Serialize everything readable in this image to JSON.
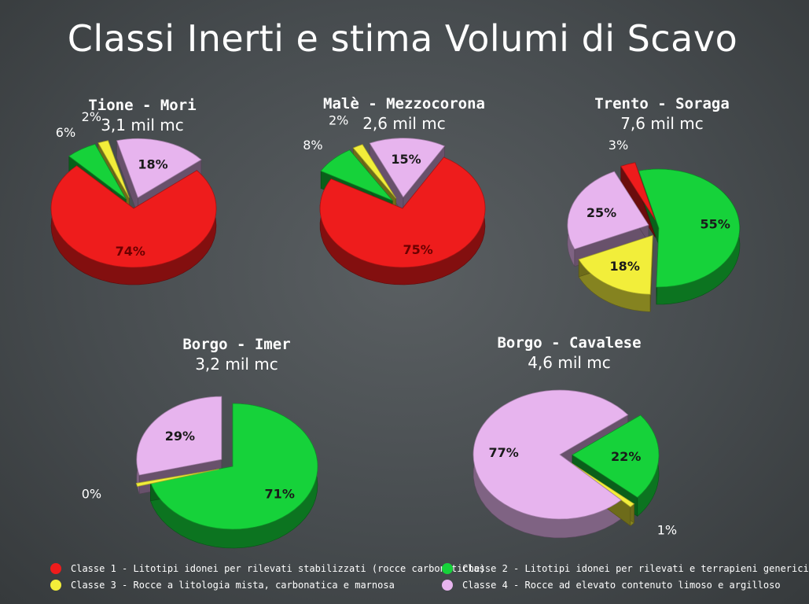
{
  "title": "Classi Inerti e stima Volumi di Scavo",
  "colors": {
    "class1": "#ee1c1c",
    "class2": "#16d23a",
    "class3": "#f2ee3a",
    "class4": "#e7b4ee"
  },
  "legend": [
    {
      "label": "Classe 1 - Litotipi idonei per rilevati stabilizzati (rocce carbonatiche)",
      "color": "#ee1c1c"
    },
    {
      "label": "Classe 2 - Litotipi idonei per rilevati e terrapieni generici",
      "color": "#16d23a"
    },
    {
      "label": "Classe 3 - Rocce a litologia mista, carbonatica e marnosa",
      "color": "#f2ee3a"
    },
    {
      "label": "Classe 4 - Rocce ad elevato contenuto limoso e argilloso",
      "color": "#e7b4ee"
    }
  ],
  "chart_data": [
    {
      "type": "pie",
      "title": "Tione - Mori",
      "subtitle": "3,1 mil mc",
      "categories": [
        "Classe 1",
        "Classe 2",
        "Classe 3",
        "Classe 4"
      ],
      "values": [
        74,
        6,
        2,
        18
      ],
      "labels": [
        "74%",
        "6%",
        "2%",
        "18%"
      ]
    },
    {
      "type": "pie",
      "title": "Malè - Mezzocorona",
      "subtitle": "2,6 mil mc",
      "categories": [
        "Classe 1",
        "Classe 2",
        "Classe 3",
        "Classe 4"
      ],
      "values": [
        75,
        8,
        2,
        15
      ],
      "labels": [
        "75%",
        "8%",
        "2%",
        "15%"
      ]
    },
    {
      "type": "pie",
      "title": "Trento - Soraga",
      "subtitle": "7,6 mil mc",
      "categories": [
        "Classe 1",
        "Classe 2",
        "Classe 3",
        "Classe 4"
      ],
      "values": [
        3,
        55,
        18,
        25
      ],
      "labels": [
        "3%",
        "55%",
        "18%",
        "25%"
      ]
    },
    {
      "type": "pie",
      "title": "Borgo - Imer",
      "subtitle": "3,2 mil mc",
      "categories": [
        "Classe 2",
        "Classe 3",
        "Classe 4"
      ],
      "values": [
        71,
        0,
        29
      ],
      "labels": [
        "71%",
        "0%",
        "29%"
      ]
    },
    {
      "type": "pie",
      "title": "Borgo - Cavalese",
      "subtitle": "4,6 mil mc",
      "categories": [
        "Classe 2",
        "Classe 3",
        "Classe 4"
      ],
      "values": [
        22,
        1,
        77
      ],
      "labels": [
        "22%",
        "1%",
        "77%"
      ]
    }
  ]
}
